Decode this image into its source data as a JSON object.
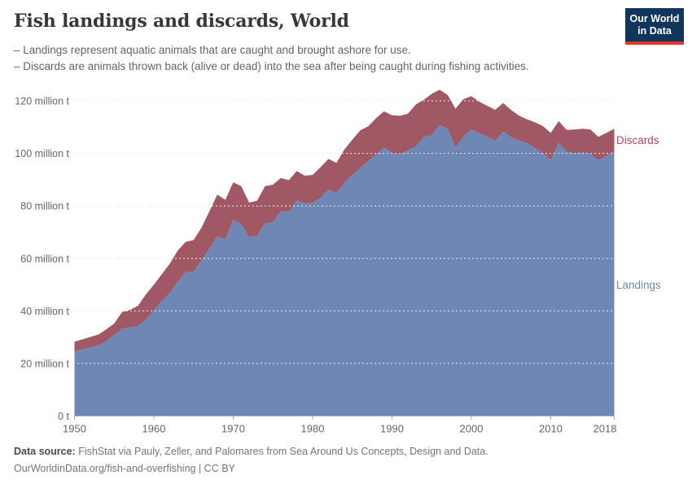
{
  "header": {
    "title": "Fish landings and discards, World",
    "subtitle_lines": [
      "– Landings represent aquatic animals that are caught and brought ashore for use.",
      "– Discards are animals thrown back (alive or dead) into the sea after being caught during fishing activities."
    ],
    "logo": {
      "line1": "Our World",
      "line2": "in Data"
    }
  },
  "colors": {
    "landings_area": "#6e87b5",
    "discards_area": "#a05865",
    "landings_label": "#6d87b8",
    "discards_label": "#a34b5e",
    "grid": "#dcdcdc",
    "grid_over_area": "#ffffff",
    "axis": "#aaaaaa",
    "tick_text": "#666666",
    "logo_bg": "#12355b",
    "logo_stripe": "#e0362c"
  },
  "series_labels": {
    "discards": "Discards",
    "landings": "Landings"
  },
  "footer": {
    "source_prefix": "Data source:",
    "source_text": " FishStat via Pauly, Zeller, and Palomares from Sea Around Us Concepts, Design and Data.",
    "line2": "OurWorldinData.org/fish-and-overfishing | CC BY"
  },
  "chart_data": {
    "type": "area",
    "stacked": true,
    "title": "Fish landings and discards, World",
    "y_unit": "million t",
    "xlim": [
      1950,
      2018
    ],
    "ylim": [
      0,
      120
    ],
    "grid": "dashed-horizontal",
    "legend": "inline-right-labels",
    "y_ticks": [
      {
        "value": 0,
        "label": "0 t"
      },
      {
        "value": 20,
        "label": "20 million t"
      },
      {
        "value": 40,
        "label": "40 million t"
      },
      {
        "value": 60,
        "label": "60 million t"
      },
      {
        "value": 80,
        "label": "80 million t"
      },
      {
        "value": 100,
        "label": "100 million t"
      },
      {
        "value": 120,
        "label": "120 million t"
      }
    ],
    "x_ticks": [
      {
        "value": 1950,
        "label": "1950"
      },
      {
        "value": 1960,
        "label": "1960"
      },
      {
        "value": 1970,
        "label": "1970"
      },
      {
        "value": 1980,
        "label": "1980"
      },
      {
        "value": 1990,
        "label": "1990"
      },
      {
        "value": 2000,
        "label": "2000"
      },
      {
        "value": 2010,
        "label": "2010"
      },
      {
        "value": 2018,
        "label": "2018"
      }
    ],
    "x": [
      1950,
      1951,
      1952,
      1953,
      1954,
      1955,
      1956,
      1957,
      1958,
      1959,
      1960,
      1961,
      1962,
      1963,
      1964,
      1965,
      1966,
      1967,
      1968,
      1969,
      1970,
      1971,
      1972,
      1973,
      1974,
      1975,
      1976,
      1977,
      1978,
      1979,
      1980,
      1981,
      1982,
      1983,
      1984,
      1985,
      1986,
      1987,
      1988,
      1989,
      1990,
      1991,
      1992,
      1993,
      1994,
      1995,
      1996,
      1997,
      1998,
      1999,
      2000,
      2001,
      2002,
      2003,
      2004,
      2005,
      2006,
      2007,
      2008,
      2009,
      2010,
      2011,
      2012,
      2013,
      2014,
      2015,
      2016,
      2017,
      2018
    ],
    "series": [
      {
        "name": "Landings",
        "values": [
          24.6,
          25.4,
          26.1,
          26.9,
          28.5,
          30.9,
          33.2,
          33.8,
          34.2,
          36.6,
          40.3,
          43.8,
          46.9,
          51.0,
          54.8,
          54.9,
          59.3,
          63.8,
          68.4,
          67.2,
          74.8,
          73.0,
          68.1,
          68.6,
          73.4,
          73.8,
          78.0,
          77.8,
          82.0,
          81.0,
          81.1,
          83.1,
          86.2,
          85.1,
          88.7,
          91.8,
          94.4,
          97.0,
          99.6,
          102.3,
          100.1,
          99.6,
          101.1,
          102.7,
          106.3,
          106.8,
          110.8,
          109.4,
          102.3,
          106.3,
          109.1,
          107.6,
          106.3,
          104.7,
          108.3,
          106.2,
          104.8,
          103.9,
          102.1,
          100.1,
          97.5,
          104.0,
          100.6,
          100.1,
          100.4,
          99.8,
          97.3,
          99.0,
          100.8
        ]
      },
      {
        "name": "Discards",
        "values": [
          3.7,
          3.8,
          4.0,
          4.1,
          4.5,
          4.3,
          6.4,
          6.6,
          7.8,
          9.8,
          9.7,
          10.2,
          11.1,
          12.0,
          11.5,
          12.1,
          12.4,
          14.2,
          15.9,
          15.1,
          14.2,
          14.5,
          13.2,
          13.4,
          14.1,
          14.3,
          12.6,
          12.0,
          11.3,
          10.5,
          10.7,
          11.7,
          11.7,
          11.3,
          12.8,
          13.4,
          14.4,
          13.3,
          13.8,
          13.7,
          14.4,
          14.7,
          14.0,
          15.9,
          14.1,
          15.9,
          13.4,
          12.9,
          14.7,
          14.4,
          12.7,
          12.1,
          11.8,
          11.9,
          10.9,
          10.3,
          9.6,
          9.1,
          9.8,
          10.3,
          10.3,
          8.3,
          8.3,
          9.0,
          9.0,
          9.3,
          9.0,
          8.8,
          8.6
        ]
      }
    ]
  }
}
